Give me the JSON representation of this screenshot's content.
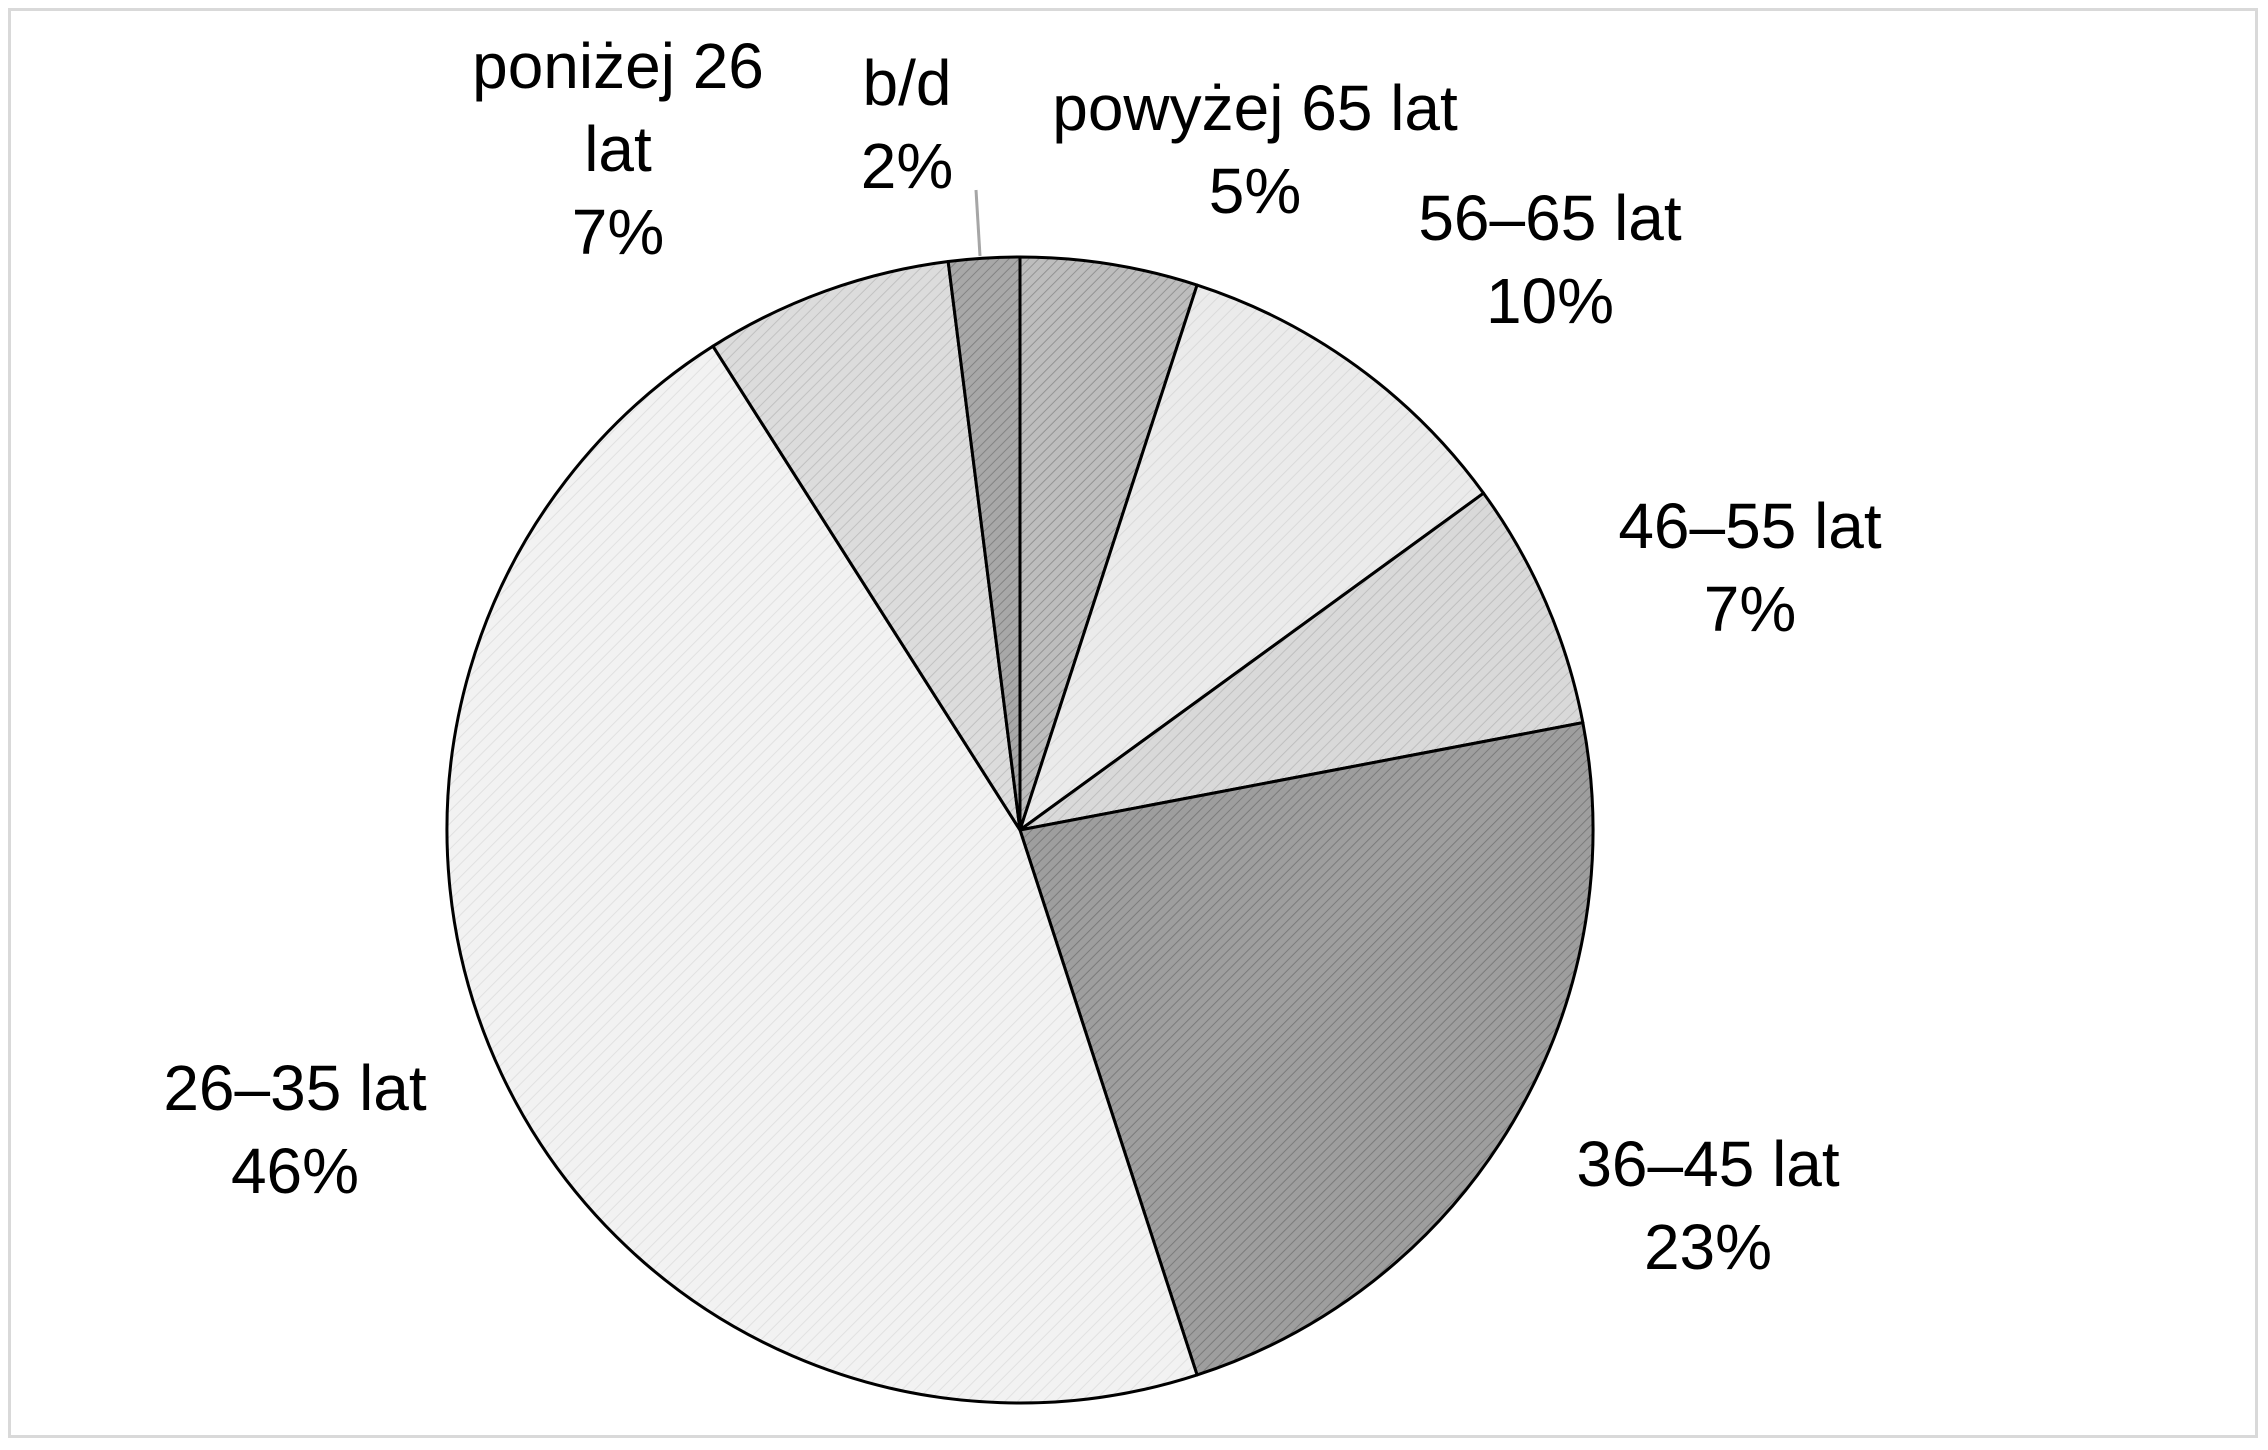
{
  "chart_data": {
    "type": "pie",
    "title": "",
    "slices": [
      {
        "label": "powyżej 65 lat",
        "value": 5,
        "percent_label": "5%",
        "fill": "#bdbdbd",
        "pattern": "dense"
      },
      {
        "label": "56–65 lat",
        "value": 10,
        "percent_label": "10%",
        "fill": "#ebebeb",
        "pattern": "light"
      },
      {
        "label": "46–55 lat",
        "value": 7,
        "percent_label": "7%",
        "fill": "#d9d9d9",
        "pattern": "medium"
      },
      {
        "label": "36–45 lat",
        "value": 23,
        "percent_label": "23%",
        "fill": "#9e9e9e",
        "pattern": "dense"
      },
      {
        "label": "26–35 lat",
        "value": 46,
        "percent_label": "46%",
        "fill": "#f2f2f2",
        "pattern": "light"
      },
      {
        "label": "poniżej 26 lat",
        "value": 7,
        "percent_label": "7%",
        "fill": "#dcdcdc",
        "pattern": "medium"
      },
      {
        "label": "b/d",
        "value": 2,
        "percent_label": "2%",
        "fill": "#a8a8a8",
        "pattern": "dense"
      }
    ],
    "legend": "none",
    "data_labels": "category-and-percent",
    "outline_color": "#000000",
    "leader_line_color": "#a6a6a6"
  }
}
